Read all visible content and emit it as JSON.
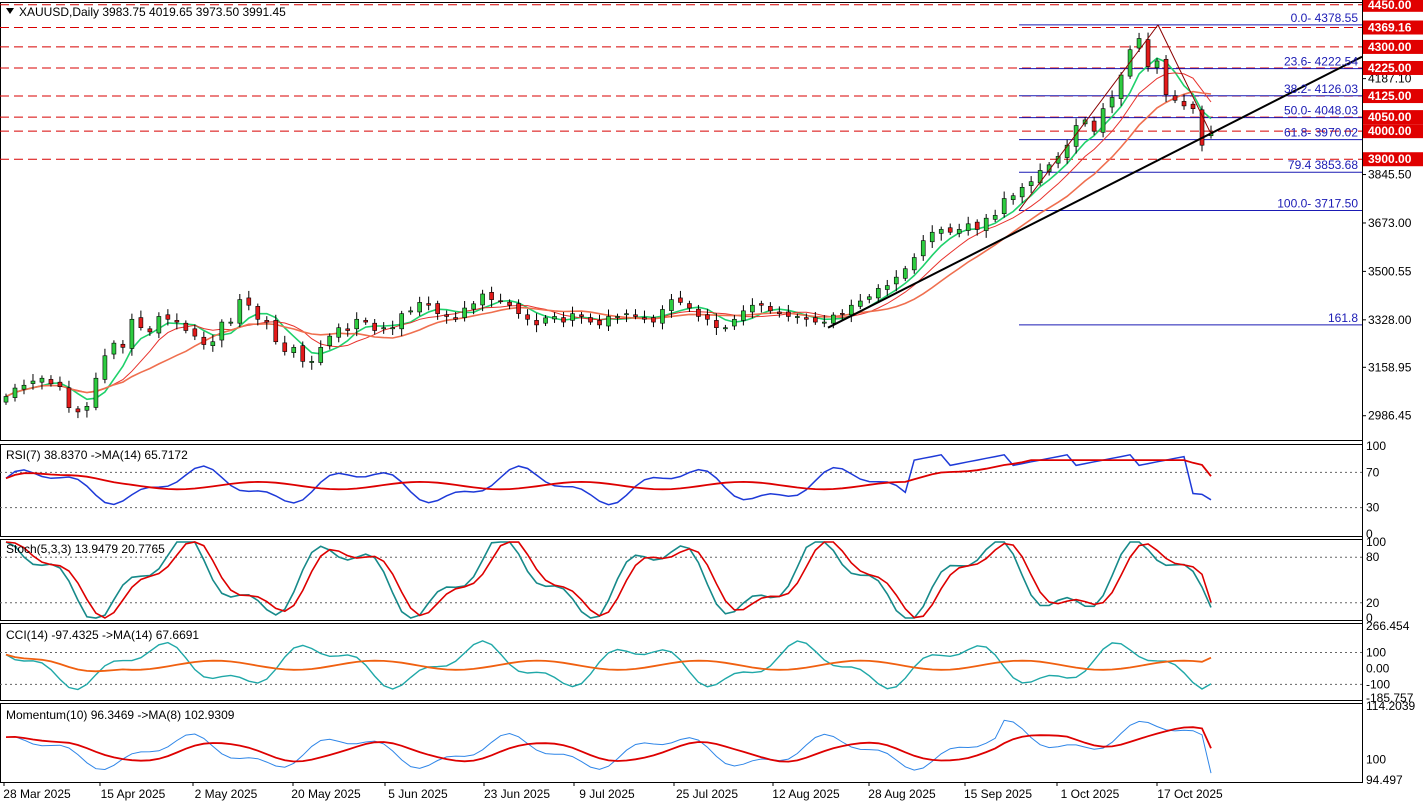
{
  "header": {
    "symbol_line": "XAUUSD,Daily  3983.75 4019.65 3973.50 3991.45",
    "collapse_icon": "triangle-down-icon"
  },
  "colors": {
    "bull_body": "#2ecc40",
    "bear_body": "#e31b1b",
    "wick": "#000000",
    "ma_fast": "#1fd16b",
    "ma_mid": "#e8322d",
    "ma_slow": "#ef6f4f",
    "trend_line": "#000000",
    "fib_line": "#1a1ab4",
    "level_line": "#d80000",
    "level_label_bg": "#e00000",
    "rsi_line": "#1e3ad8",
    "rsi_ma": "#dd0000",
    "stoch_main": "#178a8a",
    "stoch_signal": "#dd0000",
    "cci_line": "#20a8a8",
    "cci_ma": "#f06010",
    "mom_line": "#2f86e8",
    "mom_ma": "#dd0000"
  },
  "price_axis": {
    "ticks": [
      "4187.10",
      "3845.50",
      "3673.00",
      "3500.55",
      "3328.00",
      "3158.95",
      "2986.45"
    ],
    "min": 2900,
    "max": 4460
  },
  "levels": [
    {
      "label": "4450.00",
      "value": 4450
    },
    {
      "label": "4369.16",
      "value": 4369.16
    },
    {
      "label": "4300.00",
      "value": 4300
    },
    {
      "label": "4225.00",
      "value": 4225
    },
    {
      "label": "4125.00",
      "value": 4125
    },
    {
      "label": "4050.00",
      "value": 4050
    },
    {
      "label": "4000.00",
      "value": 4000
    },
    {
      "label": "3900.00",
      "value": 3900
    }
  ],
  "fib": [
    {
      "label": "0.0- 4378.55",
      "value": 4378.55
    },
    {
      "label": "23.6- 4222.54",
      "value": 4222.54
    },
    {
      "label": "38.2- 4126.03",
      "value": 4126.03
    },
    {
      "label": "50.0- 4048.03",
      "value": 4048.03
    },
    {
      "label": "61.8- 3970.02",
      "value": 3970.02
    },
    {
      "label": "79.4 3853.68",
      "value": 3853.68
    },
    {
      "label": "100.0- 3717.50",
      "value": 3717.5
    },
    {
      "label": "161.8",
      "value": 3310
    }
  ],
  "date_labels": [
    "28 Mar 2025",
    "15 Apr 2025",
    "2 May 2025",
    "20 May 2025",
    "5 Jun 2025",
    "23 Jun 2025",
    "9 Jul 2025",
    "25 Jul 2025",
    "12 Aug 2025",
    "28 Aug 2025",
    "15 Sep 2025",
    "1 Oct 2025",
    "17 Oct 2025"
  ],
  "panels": {
    "rsi": {
      "title": "RSI(7) 38.8370  ->MA(14) 65.7172",
      "ticks": [
        "100",
        "70",
        "30",
        "0"
      ]
    },
    "stoch": {
      "title": "Stoch(5,3,3) 13.9479 20.7765",
      "ticks": [
        "100",
        "80",
        "20",
        "0"
      ]
    },
    "cci": {
      "title": "CCI(14) -97.4325  ->MA(14) 67.6691",
      "ticks": [
        "266.454",
        "100",
        "0.00",
        "-100",
        "-185.757"
      ]
    },
    "momentum": {
      "title": "Momentum(10) 96.3469  ->MA(8) 102.9309",
      "ticks": [
        "114.2039",
        "100",
        "94.497"
      ]
    }
  },
  "chart_data": {
    "type": "candlestick",
    "symbol": "XAUUSD",
    "timeframe": "Daily",
    "last_bar": {
      "open": 3983.75,
      "high": 4019.65,
      "low": 3973.5,
      "close": 3991.45
    },
    "candles_close_approx": [
      3055,
      3085,
      3095,
      3110,
      3120,
      3100,
      3090,
      3015,
      3000,
      3020,
      3120,
      3200,
      3245,
      3230,
      3330,
      3300,
      3285,
      3340,
      3330,
      3320,
      3290,
      3270,
      3240,
      3250,
      3320,
      3320,
      3400,
      3380,
      3330,
      3320,
      3250,
      3215,
      3230,
      3180,
      3180,
      3230,
      3270,
      3300,
      3290,
      3330,
      3320,
      3290,
      3300,
      3300,
      3350,
      3360,
      3390,
      3380,
      3350,
      3340,
      3330,
      3370,
      3385,
      3420,
      3400,
      3395,
      3380,
      3350,
      3330,
      3310,
      3335,
      3340,
      3320,
      3350,
      3340,
      3320,
      3310,
      3340,
      3340,
      3350,
      3340,
      3330,
      3320,
      3365,
      3400,
      3390,
      3370,
      3340,
      3330,
      3300,
      3300,
      3330,
      3360,
      3380,
      3380,
      3360,
      3350,
      3340,
      3340,
      3330,
      3320,
      3320,
      3345,
      3350,
      3380,
      3395,
      3410,
      3440,
      3450,
      3480,
      3510,
      3550,
      3610,
      3640,
      3650,
      3640,
      3650,
      3670,
      3650,
      3690,
      3700,
      3760,
      3770,
      3800,
      3820,
      3860,
      3880,
      3910,
      3950,
      4020,
      4040,
      4000,
      4080,
      4120,
      4200,
      4290,
      4330,
      4230,
      4250,
      4130,
      4110,
      4090,
      4080,
      3950,
      3991.45
    ],
    "rsi": {
      "value": 38.837,
      "ma14": 65.7172
    },
    "stoch": {
      "k": 13.9479,
      "d": 20.7765
    },
    "cci": {
      "value": -97.4325,
      "ma14": 67.6691
    },
    "momentum": {
      "value": 96.3469,
      "ma8": 102.9309
    }
  }
}
